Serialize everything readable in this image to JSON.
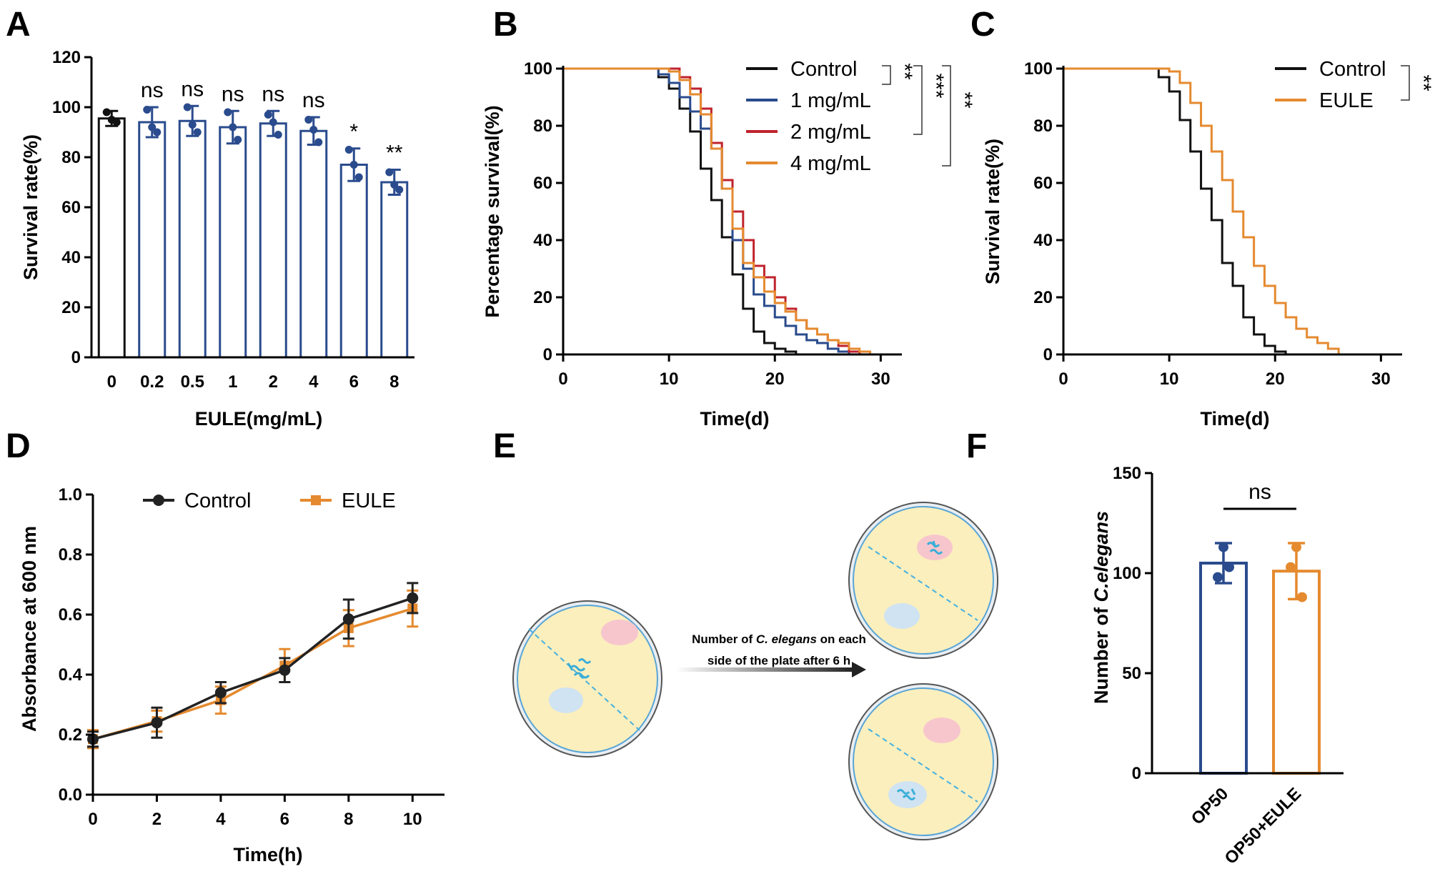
{
  "panel_labels": [
    "A",
    "B",
    "C",
    "D",
    "E",
    "F"
  ],
  "colors": {
    "black": "#111111",
    "navy": "#2a4b8d",
    "red": "#c0232c",
    "orange": "#e58a2f",
    "plate_fill": "#fbefbd",
    "plate_rim": "#5aa5d6",
    "spot_pink": "#f7c6cd",
    "spot_blue": "#cfe3f2",
    "worm": "#3aaed8"
  },
  "chart_data": [
    {
      "panel": "A",
      "type": "bar",
      "xlabel": "EULE(mg/mL)",
      "ylabel": "Survival rate(%)",
      "ylim": [
        0,
        120
      ],
      "yticks": [
        0,
        20,
        40,
        60,
        80,
        100,
        120
      ],
      "categories": [
        "0",
        "0.2",
        "0.5",
        "1",
        "2",
        "4",
        "6",
        "8"
      ],
      "values": [
        95.5,
        94,
        94.5,
        92,
        93.5,
        90.5,
        77,
        70
      ],
      "errors": [
        3,
        6,
        6,
        6.5,
        5,
        5.5,
        6.5,
        5
      ],
      "points": [
        [
          98,
          95,
          94
        ],
        [
          99,
          92,
          90
        ],
        [
          100,
          93,
          90
        ],
        [
          98,
          92,
          87
        ],
        [
          97,
          94,
          89
        ],
        [
          95,
          91,
          86
        ],
        [
          83,
          77,
          72
        ],
        [
          74,
          69,
          67
        ]
      ],
      "significance": [
        "",
        "ns",
        "ns",
        "ns",
        "ns",
        "ns",
        "*",
        "**"
      ],
      "bar_colors": [
        "#111111",
        "#2a4b8d",
        "#2a4b8d",
        "#2a4b8d",
        "#2a4b8d",
        "#2a4b8d",
        "#2a4b8d",
        "#2a4b8d"
      ]
    },
    {
      "panel": "B",
      "type": "line",
      "step": true,
      "xlabel": "Time(d)",
      "ylabel": "Percentage survival(%)",
      "xlim": [
        0,
        32
      ],
      "ylim": [
        0,
        100
      ],
      "xticks": [
        0,
        10,
        20,
        30
      ],
      "yticks": [
        0,
        20,
        40,
        60,
        80,
        100
      ],
      "series": [
        {
          "name": "Control",
          "color": "#111111",
          "x": [
            0,
            9,
            10,
            11,
            12,
            13,
            14,
            15,
            16,
            17,
            18,
            19,
            20,
            21,
            22
          ],
          "y": [
            100,
            97,
            93,
            86,
            78,
            65,
            54,
            41,
            28,
            16,
            8,
            4,
            2,
            1,
            0
          ]
        },
        {
          "name": "1 mg/mL",
          "color": "#2a4b8d",
          "x": [
            0,
            9,
            10,
            11,
            12,
            13,
            14,
            15,
            16,
            17,
            18,
            19,
            20,
            21,
            22,
            23,
            24,
            25,
            26,
            27
          ],
          "y": [
            100,
            98,
            95,
            90,
            85,
            79,
            72,
            58,
            40,
            30,
            21,
            17,
            13,
            10,
            7,
            5,
            4,
            2,
            1,
            0
          ]
        },
        {
          "name": "2 mg/mL",
          "color": "#c0232c",
          "x": [
            0,
            10,
            11,
            12,
            13,
            14,
            15,
            16,
            17,
            18,
            19,
            20,
            21,
            22,
            23,
            24,
            25,
            26,
            27,
            28
          ],
          "y": [
            100,
            100,
            97,
            93,
            86,
            74,
            61,
            50,
            40,
            31,
            27,
            20,
            16,
            12,
            9,
            7,
            5,
            3,
            1,
            0
          ]
        },
        {
          "name": "4 mg/mL",
          "color": "#e58a2f",
          "x": [
            0,
            10,
            11,
            12,
            13,
            14,
            15,
            16,
            17,
            18,
            19,
            20,
            21,
            22,
            23,
            24,
            25,
            26,
            27,
            28,
            29
          ],
          "y": [
            100,
            99,
            96,
            91,
            84,
            72,
            58,
            44,
            32,
            27,
            22,
            18,
            15,
            12,
            9,
            7,
            5,
            4,
            2,
            1,
            0
          ]
        }
      ],
      "significance": [
        "**",
        "***",
        "**"
      ]
    },
    {
      "panel": "C",
      "type": "line",
      "step": true,
      "xlabel": "Time(d)",
      "ylabel": "Survival rate(%)",
      "xlim": [
        0,
        32
      ],
      "ylim": [
        0,
        100
      ],
      "xticks": [
        0,
        10,
        20,
        30
      ],
      "yticks": [
        0,
        20,
        40,
        60,
        80,
        100
      ],
      "series": [
        {
          "name": "Control",
          "color": "#111111",
          "x": [
            0,
            9,
            10,
            11,
            12,
            13,
            14,
            15,
            16,
            17,
            18,
            19,
            20,
            21
          ],
          "y": [
            100,
            97,
            92,
            82,
            71,
            58,
            47,
            32,
            24,
            13,
            7,
            3,
            1,
            0
          ]
        },
        {
          "name": "EULE",
          "color": "#e58a2f",
          "x": [
            0,
            10,
            11,
            12,
            13,
            14,
            15,
            16,
            17,
            18,
            19,
            20,
            21,
            22,
            23,
            24,
            25,
            26
          ],
          "y": [
            100,
            99,
            95,
            88,
            80,
            71,
            61,
            50,
            41,
            31,
            24,
            18,
            13,
            9,
            6,
            4,
            2,
            0
          ]
        }
      ],
      "significance": [
        "**"
      ]
    },
    {
      "panel": "D",
      "type": "line",
      "xlabel": "Time(h)",
      "ylabel": "Absorbance at 600 nm",
      "xlim": [
        0,
        11
      ],
      "ylim": [
        0,
        1.0
      ],
      "xticks": [
        0,
        2,
        4,
        6,
        8,
        10
      ],
      "yticks": [
        "0.0",
        "0.2",
        "0.4",
        "0.6",
        "0.8",
        "1.0"
      ],
      "x": [
        0,
        2,
        4,
        6,
        8,
        10
      ],
      "series": [
        {
          "name": "Control",
          "color": "#222222",
          "marker": "circle",
          "values": [
            0.185,
            0.24,
            0.34,
            0.415,
            0.585,
            0.655
          ],
          "errors": [
            0.025,
            0.05,
            0.035,
            0.04,
            0.065,
            0.05
          ]
        },
        {
          "name": "EULE",
          "color": "#e58a2f",
          "marker": "square",
          "values": [
            0.185,
            0.245,
            0.315,
            0.43,
            0.555,
            0.62
          ],
          "errors": [
            0.03,
            0.035,
            0.045,
            0.055,
            0.06,
            0.06
          ]
        }
      ]
    },
    {
      "panel": "F",
      "type": "bar",
      "ylabel": "Number of C.elegans",
      "ylim": [
        0,
        150
      ],
      "yticks": [
        0,
        50,
        100,
        150
      ],
      "categories": [
        "OP50",
        "OP50+EULE"
      ],
      "values": [
        105,
        101
      ],
      "errors": [
        10,
        14
      ],
      "points": [
        [
          113,
          98,
          103
        ],
        [
          113,
          103,
          88
        ]
      ],
      "bar_colors": [
        "#2a4b8d",
        "#e58a2f"
      ],
      "significance": [
        "ns"
      ]
    }
  ],
  "panel_e": {
    "text_line1_a": "Number of ",
    "text_line1_b": "C. elegans",
    "text_line1_c": " on each",
    "text_line2": "side of the plate after 6 h"
  }
}
